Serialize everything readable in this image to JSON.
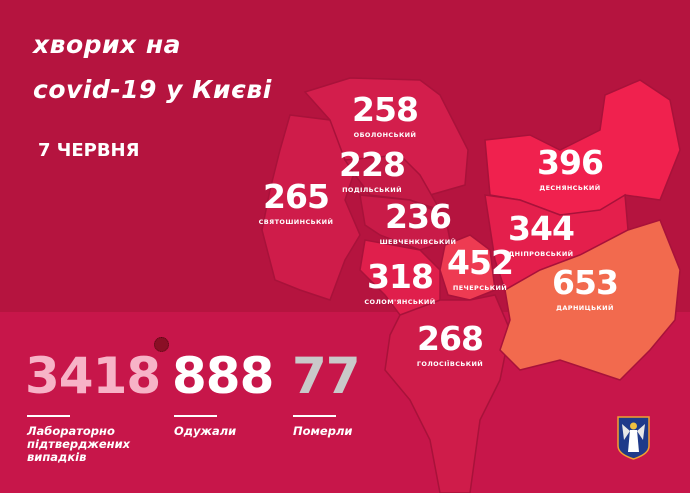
{
  "header": {
    "title_line1": "хворих на",
    "title_line2": "covid-19 у Києві",
    "date": "7 ЧЕРВНЯ"
  },
  "districts": [
    {
      "name": "ОБОЛОНСЬКИЙ",
      "cases": "258"
    },
    {
      "name": "ПОДІЛЬСЬКИЙ",
      "cases": "228"
    },
    {
      "name": "СВЯТОШИНСЬКИЙ",
      "cases": "265"
    },
    {
      "name": "ШЕВЧЕНКІВСЬКИЙ",
      "cases": "236"
    },
    {
      "name": "СОЛОМ'ЯНСЬКИЙ",
      "cases": "318"
    },
    {
      "name": "ПЕЧЕРСЬКИЙ",
      "cases": "452"
    },
    {
      "name": "ГОЛОСІЇВСЬКИЙ",
      "cases": "268"
    },
    {
      "name": "ДЕСНЯНСЬКИЙ",
      "cases": "396"
    },
    {
      "name": "ДНІПРОВСЬКИЙ",
      "cases": "344"
    },
    {
      "name": "ДАРНИЦЬКИЙ",
      "cases": "653"
    }
  ],
  "totals": {
    "confirmed": {
      "value": "3418",
      "label": "Лабораторно підтверджених випадків",
      "color": "#f7b3c7"
    },
    "recovered": {
      "value": "888",
      "label": "Одужали",
      "color": "#ffffff"
    },
    "deaths": {
      "value": "77",
      "label": "Померли",
      "color": "#c9c9c9"
    }
  },
  "colors": {
    "background": "#b5143f",
    "panel": "#c7164a",
    "district_base": "#d11d4a",
    "district_high": "#f2224e",
    "district_max": "#f26a4e"
  },
  "icons": [
    "virus-icon",
    "kyiv-coat-of-arms"
  ]
}
